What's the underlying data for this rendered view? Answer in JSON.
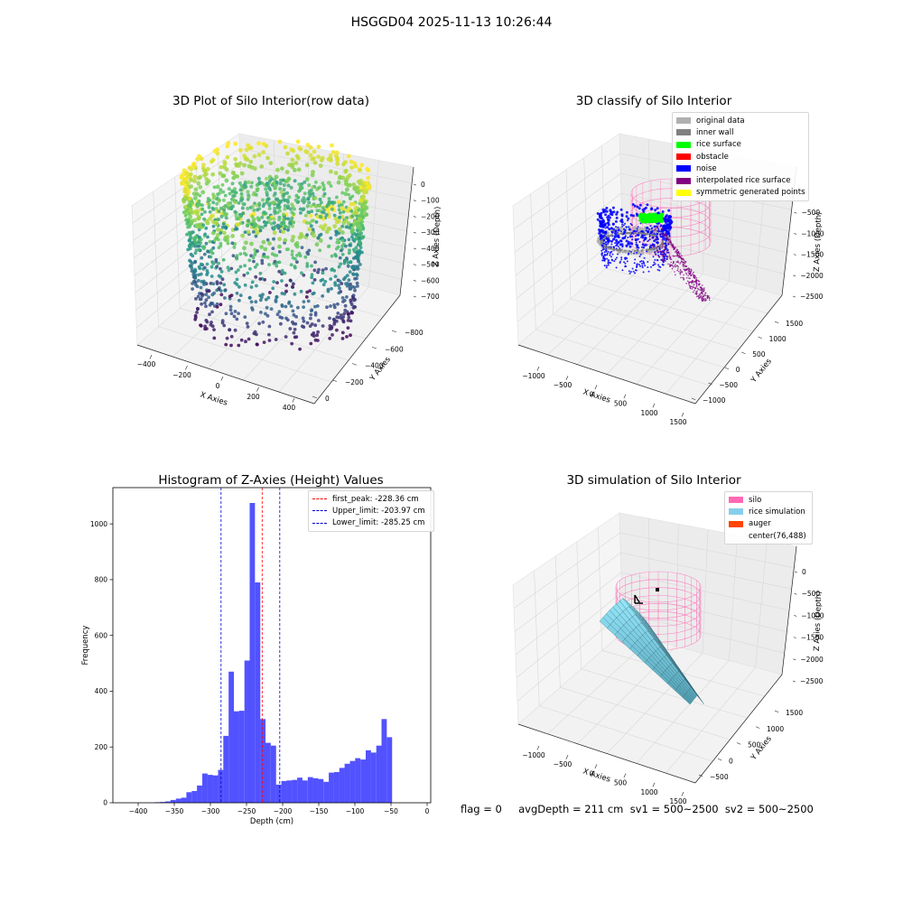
{
  "figure": {
    "title": "HSGGD04 2025-11-13 10:26:44",
    "status_text": "flag = 0     avgDepth = 211 cm  sv1 = 500~2500  sv2 = 500~2500"
  },
  "chart_data": [
    {
      "type": "scatter",
      "title": "3D Plot of Silo Interior(row data)",
      "xlabel": "X Axies",
      "ylabel": "Y Axies",
      "zlabel": "Z Axies (Depth)",
      "x_ticks": [
        "−400",
        "−200",
        "0",
        "200",
        "400"
      ],
      "y_ticks": [
        "0",
        "−200",
        "−400",
        "−600",
        "−800"
      ],
      "z_ticks": [
        "0",
        "−100",
        "−200",
        "−300",
        "−400",
        "−500",
        "−600",
        "−700"
      ],
      "xlim": [
        -450,
        450
      ],
      "ylim": [
        -900,
        100
      ],
      "zlim": [
        -760,
        0
      ],
      "colormap": "viridis",
      "series": [
        {
          "shape": "ring",
          "cx": 0,
          "cy": -380,
          "r_top": 330,
          "r_bottom": 270,
          "z_top": 0,
          "z_bottom": -720
        }
      ]
    },
    {
      "type": "scatter",
      "title": "3D classify of Silo Interior",
      "xlabel": "X Axies",
      "ylabel": "Y Axies",
      "zlabel": "Z Axies (Depth)",
      "x_ticks": [
        "−1000",
        "−500",
        "0",
        "500",
        "1000",
        "1500"
      ],
      "y_ticks": [
        "−1000",
        "−500",
        "0",
        "500",
        "1000",
        "1500"
      ],
      "z_ticks": [
        "0",
        "−500",
        "−1000",
        "−1500",
        "−2000",
        "−2500"
      ],
      "legend": [
        {
          "label": "original data",
          "color": "#b0b0b0"
        },
        {
          "label": "inner wall",
          "color": "#808080"
        },
        {
          "label": "rice surface",
          "color": "#00ff00"
        },
        {
          "label": "obstacle",
          "color": "#ff0000"
        },
        {
          "label": "noise",
          "color": "#0000ff"
        },
        {
          "label": "interpolated rice surface",
          "color": "#800080"
        },
        {
          "label": "symmetric generated points",
          "color": "#ffff00"
        }
      ]
    },
    {
      "type": "bar",
      "title": "Histogram of Z-Axies (Height) Values",
      "xlabel": "Depth (cm)",
      "ylabel": "Frequency",
      "xlim": [
        -435,
        5
      ],
      "ylim": [
        0,
        1130
      ],
      "x_ticks": [
        -400,
        -350,
        -300,
        -250,
        -200,
        -150,
        -100,
        -50,
        0
      ],
      "y_ticks": [
        0,
        200,
        400,
        600,
        800,
        1000
      ],
      "bin_start": -377,
      "bin_width": 7.3,
      "color": "#0000ff",
      "values": [
        2,
        3,
        5,
        10,
        15,
        18,
        38,
        42,
        62,
        105,
        100,
        98,
        118,
        240,
        470,
        328,
        330,
        510,
        1075,
        790,
        300,
        215,
        205,
        65,
        78,
        80,
        82,
        90,
        80,
        92,
        88,
        85,
        75,
        108,
        110,
        125,
        140,
        150,
        160,
        155,
        188,
        180,
        205,
        300,
        235
      ],
      "lines": [
        {
          "label": "first_peak: -228.36 cm",
          "x": -228.36,
          "color": "#ff0000"
        },
        {
          "label": "Upper_limit: -203.97 cm",
          "x": -203.97,
          "color": "#0000cc"
        },
        {
          "label": "Lower_limit: -285.25 cm",
          "x": -285.25,
          "color": "#0000cc"
        }
      ]
    },
    {
      "type": "area",
      "title": "3D simulation of Silo Interior",
      "xlabel": "X Axies",
      "ylabel": "Y Axies",
      "zlabel": "Z Axies (Depth)",
      "x_ticks": [
        "−1000",
        "−500",
        "0",
        "500",
        "1000",
        "1500"
      ],
      "y_ticks": [
        "−500",
        "0",
        "500",
        "1000",
        "1500"
      ],
      "z_ticks": [
        "0",
        "−500",
        "−1000",
        "−1500",
        "−2000",
        "−2500"
      ],
      "legend": [
        {
          "label": "silo",
          "color": "#ff69b4"
        },
        {
          "label": "rice simulation",
          "color": "#87ceeb"
        },
        {
          "label": "auger",
          "color": "#ff4500"
        },
        {
          "label": "center(76,488)",
          "color": ""
        }
      ]
    }
  ]
}
